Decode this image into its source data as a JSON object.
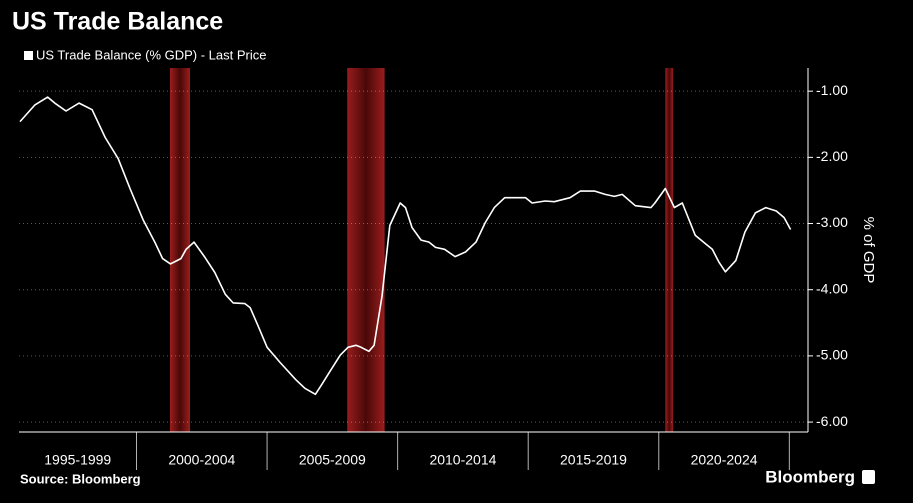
{
  "chart_data": {
    "type": "line",
    "title": "US Trade Balance",
    "y_axis_label": "% of GDP",
    "source": "Source: Bloomberg",
    "brand": "Bloomberg",
    "x": [
      1995.54,
      1996.1,
      1996.6,
      1996.9,
      1997.3,
      1997.8,
      1998.3,
      1998.8,
      1999.3,
      1999.75,
      2000.25,
      2000.7,
      2001.0,
      2001.3,
      2001.7,
      2001.9,
      2002.2,
      2002.6,
      2003.0,
      2003.4,
      2003.7,
      2004.15,
      2004.35,
      2004.65,
      2005.0,
      2005.5,
      2006.1,
      2006.45,
      2006.85,
      2007.1,
      2007.4,
      2007.8,
      2008.1,
      2008.4,
      2008.6,
      2008.9,
      2009.1,
      2009.4,
      2009.7,
      2010.1,
      2010.3,
      2010.55,
      2010.9,
      2011.2,
      2011.45,
      2011.8,
      2012.2,
      2012.6,
      2013.0,
      2013.35,
      2013.7,
      2014.1,
      2014.5,
      2014.9,
      2015.15,
      2015.65,
      2016.0,
      2016.6,
      2017.0,
      2017.55,
      2017.95,
      2018.3,
      2018.6,
      2019.1,
      2019.7,
      2019.85,
      2020.25,
      2020.6,
      2020.9,
      2021.4,
      2021.8,
      2022.05,
      2022.3,
      2022.55,
      2022.95,
      2023.3,
      2023.7,
      2024.1,
      2024.5,
      2024.8,
      2025.05
    ],
    "series": [
      {
        "name": "US Trade Balance (% GDP) - Last Price",
        "color": "#ffffff",
        "values": [
          -1.46,
          -1.21,
          -1.09,
          -1.19,
          -1.3,
          -1.18,
          -1.28,
          -1.7,
          -2.02,
          -2.47,
          -2.94,
          -3.28,
          -3.53,
          -3.61,
          -3.53,
          -3.39,
          -3.28,
          -3.5,
          -3.74,
          -4.07,
          -4.2,
          -4.21,
          -4.27,
          -4.54,
          -4.87,
          -5.1,
          -5.36,
          -5.49,
          -5.58,
          -5.43,
          -5.24,
          -4.99,
          -4.87,
          -4.84,
          -4.87,
          -4.93,
          -4.84,
          -4.1,
          -3.03,
          -2.69,
          -2.76,
          -3.06,
          -3.25,
          -3.28,
          -3.36,
          -3.39,
          -3.5,
          -3.43,
          -3.28,
          -2.99,
          -2.76,
          -2.61,
          -2.61,
          -2.61,
          -2.69,
          -2.66,
          -2.67,
          -2.61,
          -2.51,
          -2.51,
          -2.56,
          -2.59,
          -2.56,
          -2.73,
          -2.76,
          -2.69,
          -2.47,
          -2.76,
          -2.69,
          -3.18,
          -3.31,
          -3.39,
          -3.58,
          -3.73,
          -3.56,
          -3.13,
          -2.84,
          -2.76,
          -2.81,
          -2.91,
          -3.09
        ]
      }
    ],
    "recessions": [
      [
        2001.28,
        2002.05
      ],
      [
        2008.07,
        2009.5
      ],
      [
        2020.25,
        2020.55
      ]
    ],
    "xlim": [
      1995.5,
      2025.6
    ],
    "xticks": [
      2000,
      2005,
      2010,
      2015,
      2020,
      2025
    ],
    "xgroups": [
      "1995-1999",
      "2000-2004",
      "2005-2009",
      "2010-2014",
      "2015-2019",
      "2020-2024"
    ],
    "ylim": [
      -6.15,
      -0.65
    ],
    "yticks": [
      {
        "value": -1,
        "label": "-1.00"
      },
      {
        "value": -2,
        "label": "-2.00"
      },
      {
        "value": -3,
        "label": "-3.00"
      },
      {
        "value": -4,
        "label": "-4.00"
      },
      {
        "value": -5,
        "label": "-5.00"
      },
      {
        "value": -6,
        "label": "-6.00"
      }
    ]
  }
}
